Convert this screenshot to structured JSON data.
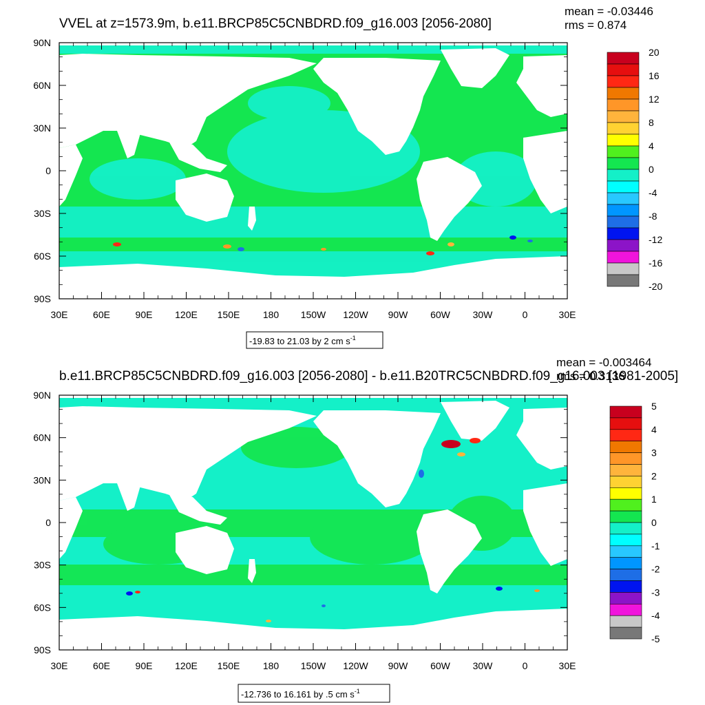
{
  "chart_data": [
    {
      "type": "heatmap",
      "title": "VVEL at z=1573.9m, b.e11.BRCP85C5CNBDRD.f09_g16.003 [2056-2080]",
      "stats": {
        "mean": "mean = -0.03446",
        "rms": "rms = 0.874"
      },
      "x_ticks": [
        "30E",
        "60E",
        "90E",
        "120E",
        "150E",
        "180",
        "150W",
        "120W",
        "90W",
        "60W",
        "30W",
        "0",
        "30E"
      ],
      "y_ticks": [
        "90N",
        "60N",
        "30N",
        "0",
        "30S",
        "60S",
        "90S"
      ],
      "x_range_deg": [
        30,
        390
      ],
      "y_range_deg": [
        -90,
        90
      ],
      "range_label": "-19.83 to 21.03 by 2 cm s",
      "units_sup": "-1",
      "colorbar": {
        "labels": [
          "20",
          "16",
          "12",
          "8",
          "4",
          "0",
          "-4",
          "-8",
          "-12",
          "-16",
          "-20"
        ],
        "colors": [
          "#C8001E",
          "#E60F0F",
          "#FF2814",
          "#F07800",
          "#FF9628",
          "#FFB43C",
          "#FFD232",
          "#FFFF00",
          "#50F01E",
          "#14E650",
          "#14F0C8",
          "#00FFFF",
          "#28C8FF",
          "#0096FF",
          "#1E6EE6",
          "#0014F0",
          "#8C14C8",
          "#F014DC",
          "#C8C8C8",
          "#787878"
        ],
        "levels": [
          20,
          18,
          16,
          14,
          12,
          10,
          8,
          6,
          4,
          2,
          0,
          -2,
          -4,
          -6,
          -8,
          -10,
          -12,
          -14,
          -16,
          -18,
          -20
        ]
      }
    },
    {
      "type": "heatmap",
      "title": "b.e11.BRCP85C5CNBDRD.f09_g16.003 [2056-2080] - b.e11.B20TRC5CNBDRD.f09_g16.003 [1981-2005]",
      "stats": {
        "mean": "mean = -0.003464",
        "rms": "rms = 0.3136"
      },
      "x_ticks": [
        "30E",
        "60E",
        "90E",
        "120E",
        "150E",
        "180",
        "150W",
        "120W",
        "90W",
        "60W",
        "30W",
        "0",
        "30E"
      ],
      "y_ticks": [
        "90N",
        "60N",
        "30N",
        "0",
        "30S",
        "60S",
        "90S"
      ],
      "x_range_deg": [
        30,
        390
      ],
      "y_range_deg": [
        -90,
        90
      ],
      "range_label": "-12.736 to 16.161 by .5 cm s",
      "units_sup": "-1",
      "colorbar": {
        "labels": [
          "5",
          "4",
          "3",
          "2",
          "1",
          "0",
          "-1",
          "-2",
          "-3",
          "-4",
          "-5"
        ],
        "colors": [
          "#C8001E",
          "#E60F0F",
          "#FF2814",
          "#F07800",
          "#FF9628",
          "#FFB43C",
          "#FFD232",
          "#FFFF00",
          "#50F01E",
          "#14E650",
          "#14F0C8",
          "#00FFFF",
          "#28C8FF",
          "#0096FF",
          "#1E6EE6",
          "#0014F0",
          "#8C14C8",
          "#F014DC",
          "#C8C8C8",
          "#787878"
        ],
        "levels": [
          5,
          4.5,
          4,
          3.5,
          3,
          2.5,
          2,
          1.5,
          1,
          0.5,
          0,
          -0.5,
          -1,
          -1.5,
          -2,
          -2.5,
          -3,
          -3.5,
          -4,
          -4.5,
          -5
        ]
      }
    }
  ]
}
